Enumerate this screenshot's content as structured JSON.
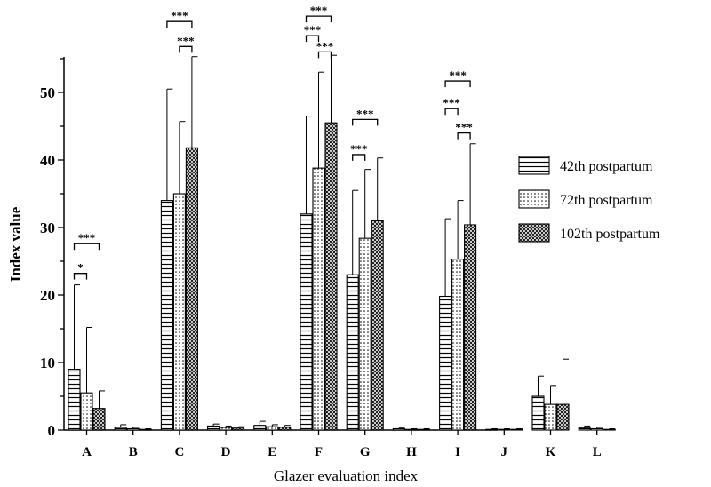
{
  "colors": {
    "ink": "#000000",
    "background": "#ffffff"
  },
  "chart_data": {
    "type": "bar",
    "xlabel": "Glazer evaluation index",
    "ylabel": "Index value",
    "ylim": [
      0,
      55
    ],
    "yticks": [
      0,
      10,
      20,
      30,
      40,
      50
    ],
    "categories": [
      "A",
      "B",
      "C",
      "D",
      "E",
      "F",
      "G",
      "H",
      "I",
      "J",
      "K",
      "L"
    ],
    "series": [
      {
        "name": "42th postpartum",
        "pattern": "horizontal-stripes",
        "values": [
          9.0,
          0.4,
          34.0,
          0.6,
          0.7,
          32.0,
          23.0,
          0.2,
          19.8,
          0.1,
          5.0,
          0.3
        ],
        "errors": [
          12.5,
          0.4,
          16.5,
          0.3,
          0.6,
          14.5,
          12.5,
          0.1,
          11.5,
          0.1,
          3.0,
          0.3
        ]
      },
      {
        "name": "72th postpartum",
        "pattern": "dots",
        "values": [
          5.5,
          0.2,
          35.0,
          0.4,
          0.5,
          38.8,
          28.4,
          0.1,
          25.3,
          0.1,
          3.8,
          0.2
        ],
        "errors": [
          9.7,
          0.2,
          10.7,
          0.2,
          0.3,
          14.2,
          10.2,
          0.1,
          8.7,
          0.1,
          2.8,
          0.2
        ]
      },
      {
        "name": "102th postpartum",
        "pattern": "crosshatch",
        "values": [
          3.2,
          0.1,
          41.8,
          0.3,
          0.4,
          45.5,
          31.0,
          0.1,
          30.4,
          0.1,
          3.8,
          0.1
        ],
        "errors": [
          2.6,
          0.1,
          13.5,
          0.2,
          0.3,
          10.0,
          9.3,
          0.1,
          12.0,
          0.1,
          6.7,
          0.1
        ]
      }
    ],
    "significance": [
      {
        "category": "A",
        "from": 0,
        "to": 1,
        "label": "*",
        "y": 23.2
      },
      {
        "category": "A",
        "from": 0,
        "to": 2,
        "label": "***",
        "y": 27.6
      },
      {
        "category": "C",
        "from": 0,
        "to": 2,
        "label": "***",
        "y": 60.5
      },
      {
        "category": "C",
        "from": 1,
        "to": 2,
        "label": "***",
        "y": 56.8
      },
      {
        "category": "F",
        "from": 0,
        "to": 1,
        "label": "***",
        "y": 58.4
      },
      {
        "category": "F",
        "from": 0,
        "to": 2,
        "label": "***",
        "y": 61.3
      },
      {
        "category": "F",
        "from": 1,
        "to": 2,
        "label": "***",
        "y": 56.0
      },
      {
        "category": "G",
        "from": 0,
        "to": 1,
        "label": "***",
        "y": 40.8
      },
      {
        "category": "G",
        "from": 0,
        "to": 2,
        "label": "***",
        "y": 46.0
      },
      {
        "category": "I",
        "from": 0,
        "to": 1,
        "label": "***",
        "y": 47.6
      },
      {
        "category": "I",
        "from": 0,
        "to": 2,
        "label": "***",
        "y": 51.7
      },
      {
        "category": "I",
        "from": 1,
        "to": 2,
        "label": "***",
        "y": 44.0
      }
    ],
    "legend_position": "right"
  }
}
